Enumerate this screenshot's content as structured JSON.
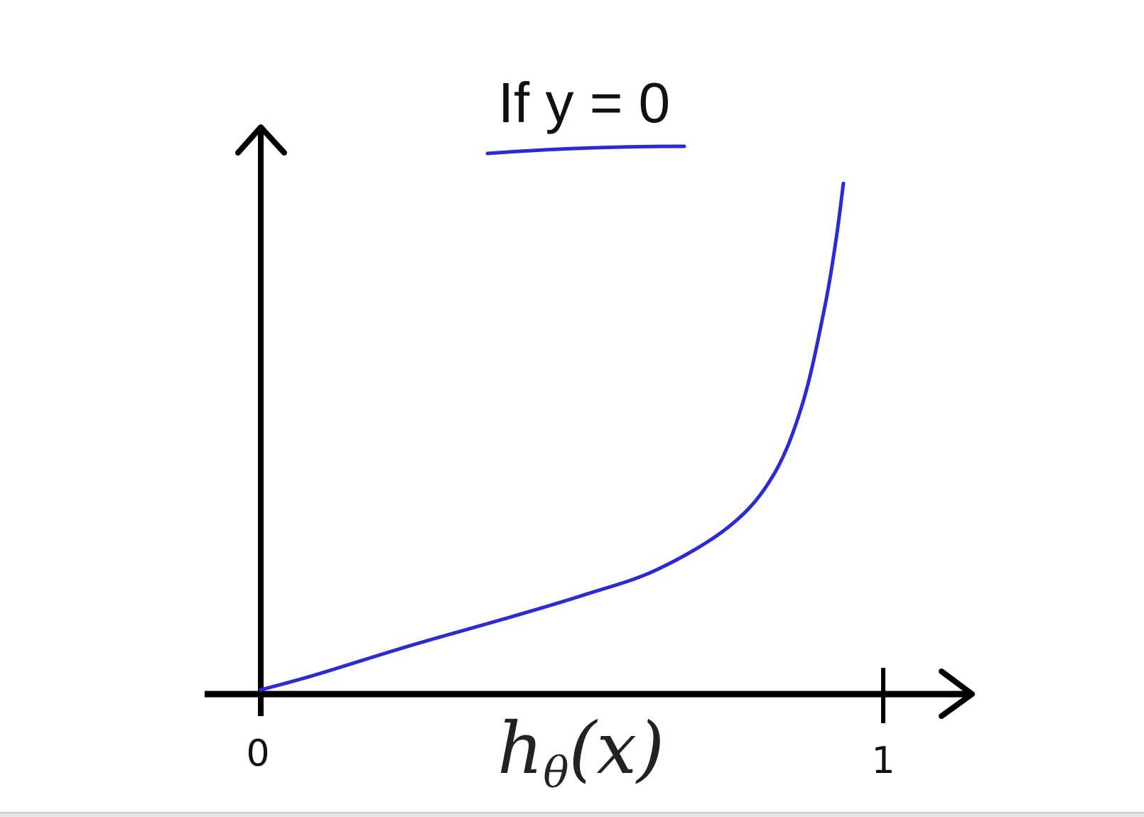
{
  "chart_data": {
    "type": "line",
    "title": "If y = 0",
    "xlabel": "hθ(x)",
    "xlabel_main": "h",
    "xlabel_sub": "θ",
    "xlabel_arg": "(x)",
    "ylabel": "",
    "x_ticks": [
      "0",
      "1"
    ],
    "xlim": [
      0,
      1
    ],
    "grid": false,
    "legend": "none",
    "series": [
      {
        "color": "#2b2bd6",
        "x": [
          0,
          0.086,
          0.238,
          0.402,
          0.519,
          0.637,
          0.754,
          0.824,
          0.871,
          0.906,
          0.924,
          0.936
        ],
        "y": [
          0,
          0.077,
          0.23,
          0.383,
          0.498,
          0.632,
          0.862,
          1.13,
          1.51,
          2.01,
          2.36,
          2.66
        ]
      }
    ],
    "title_underline_color": "#2b2bd6",
    "axis_color": "#000000"
  }
}
